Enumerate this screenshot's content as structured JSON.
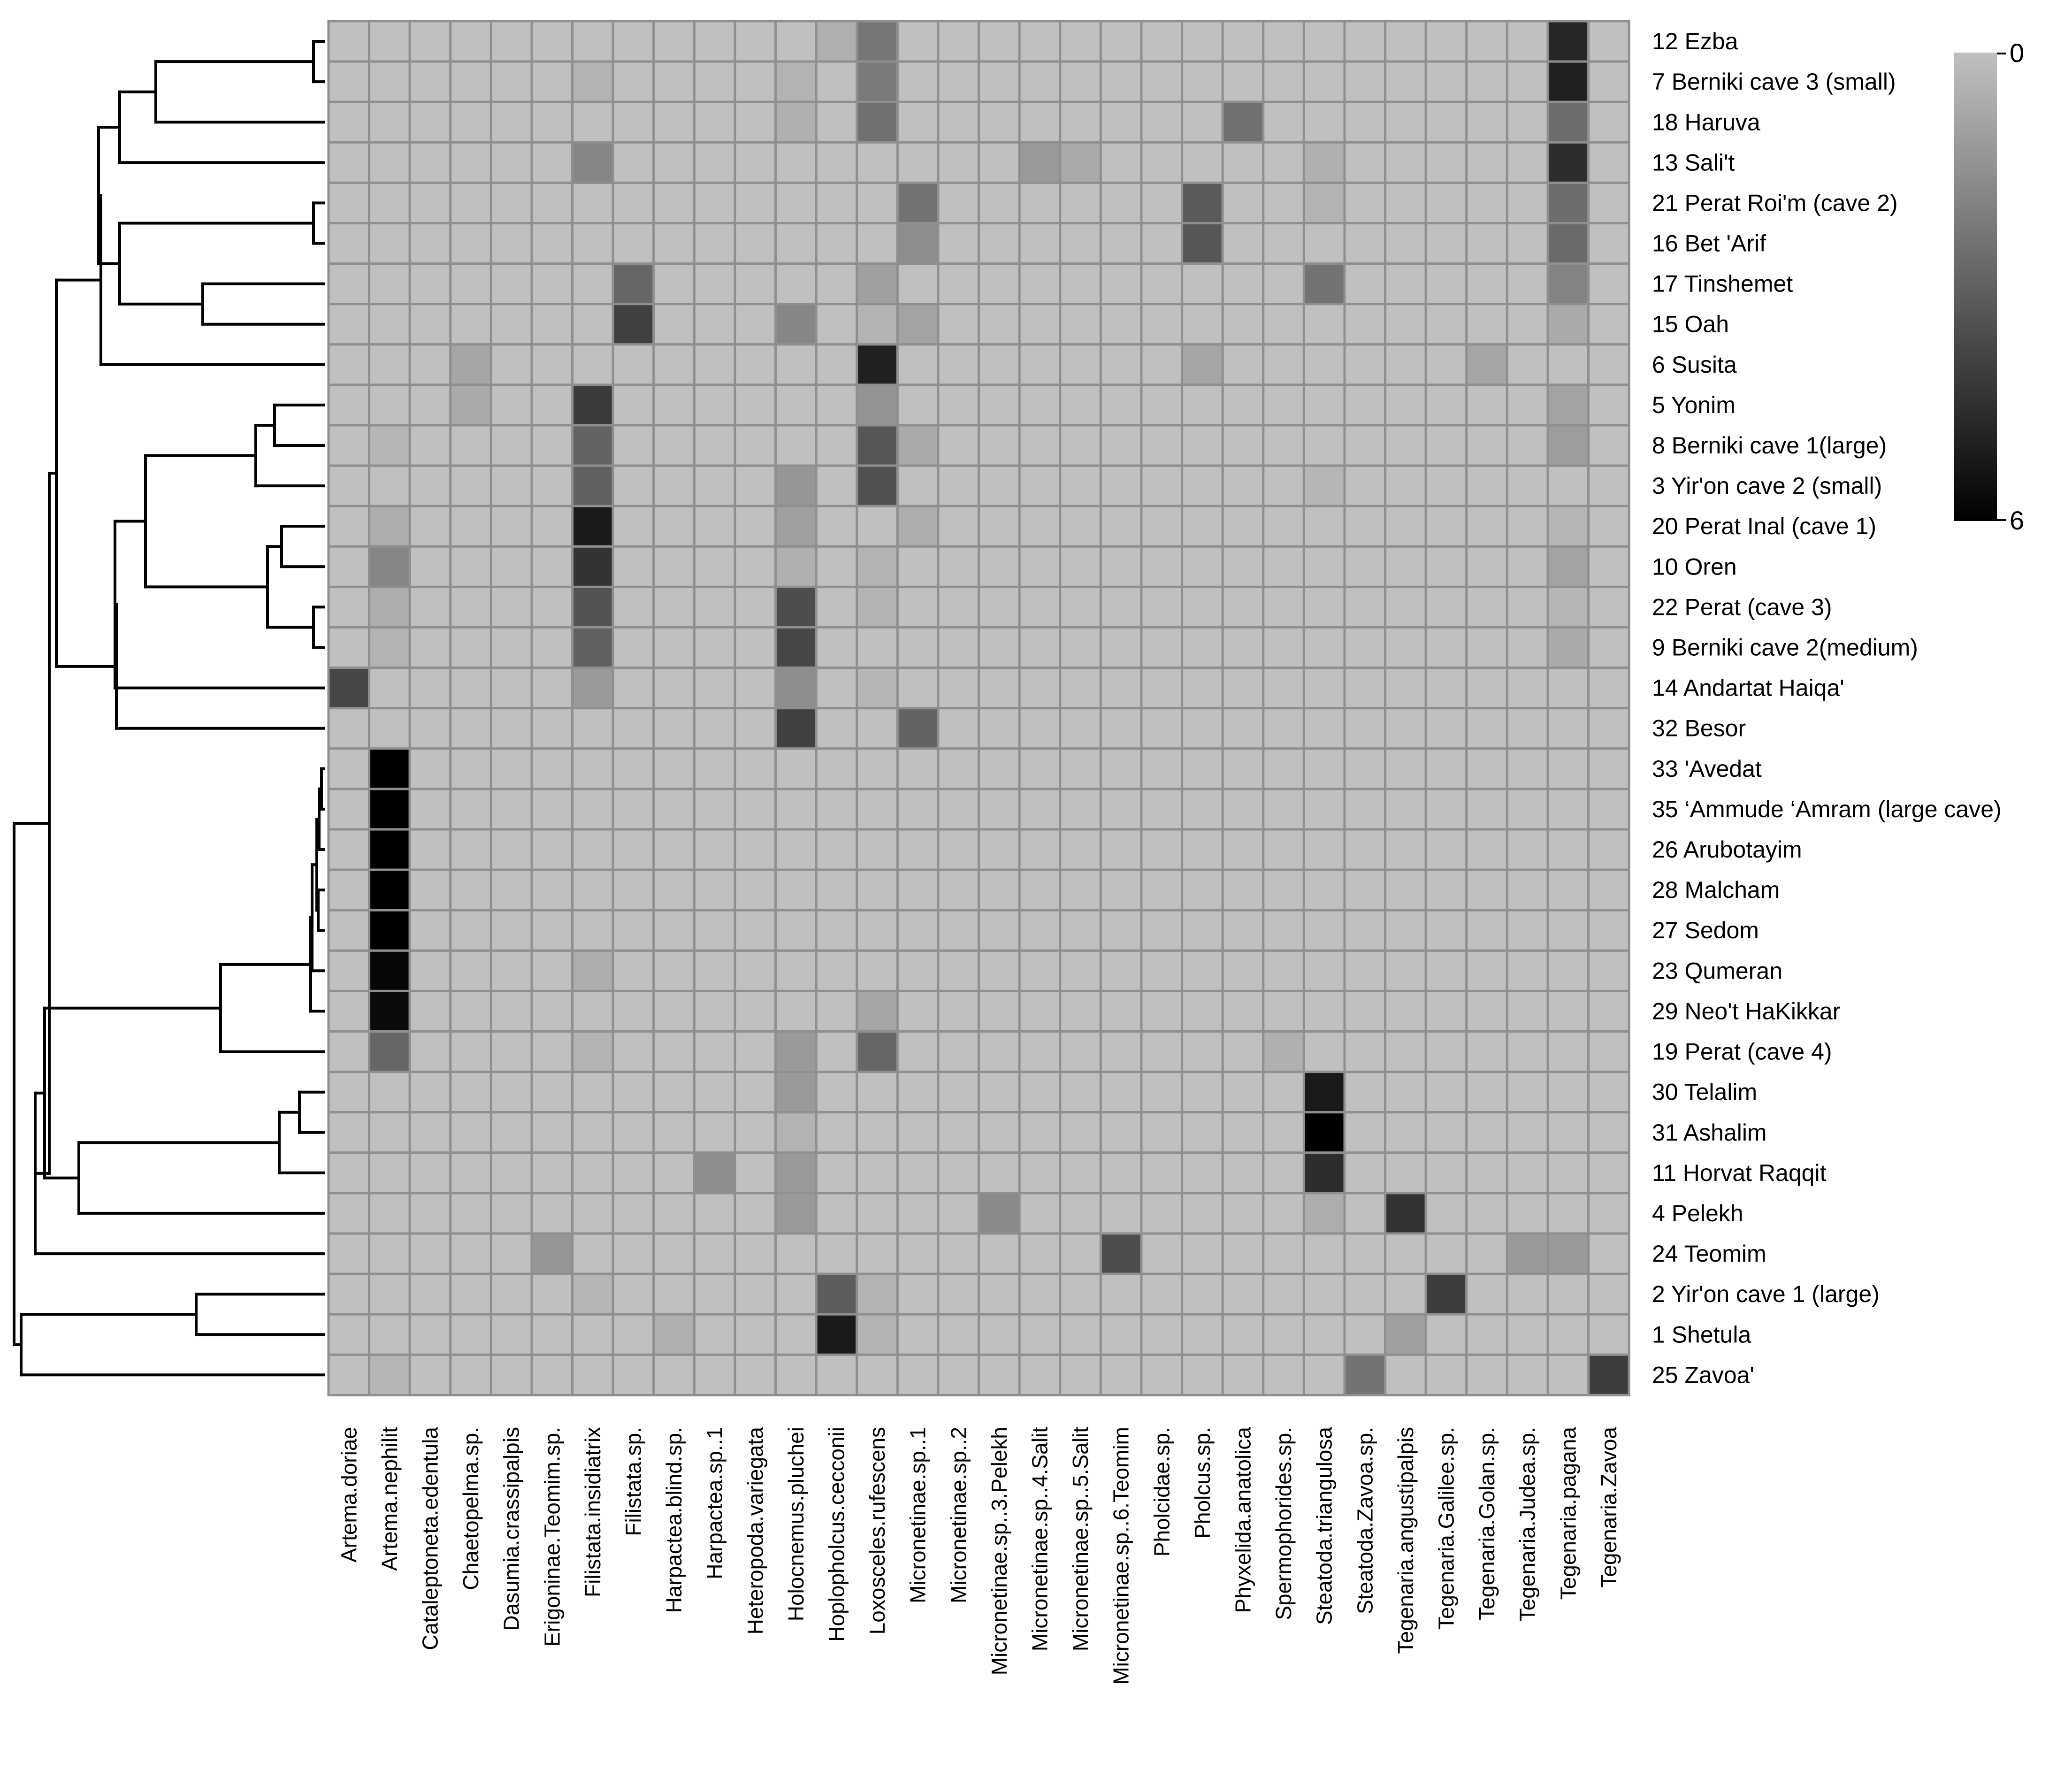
{
  "chart_data": {
    "type": "heatmap",
    "title": "",
    "rows": [
      "12 Ezba",
      "7 Berniki cave 3 (small)",
      "18 Haruva",
      "13 Sali't",
      "21 Perat Roi'm (cave 2)",
      "16 Bet 'Arif",
      "17 Tinshemet",
      "15 Oah",
      "6 Susita",
      "5 Yonim",
      "8 Berniki cave 1(large)",
      "3 Yir'on cave 2 (small)",
      "20 Perat Inal (cave 1)",
      "10 Oren",
      "22 Perat (cave 3)",
      "9 Berniki cave 2(medium)",
      "14 Andartat Haiqa'",
      "32 Besor",
      "33 'Avedat",
      "35 ‘Ammude ‘Amram  (large cave)",
      "26 Arubotayim",
      "28 Malcham",
      "27 Sedom",
      "23 Qumeran",
      "29 Neo't HaKikkar",
      "19 Perat (cave 4)",
      "30 Telalim",
      "31 Ashalim",
      "11 Horvat Raqqit",
      "4 Pelekh",
      "24 Teomim",
      "2 Yir'on cave 1 (large)",
      "1 Shetula",
      "25 Zavoa'"
    ],
    "columns": [
      "Artema.doriae",
      "Artema.nephilit",
      "Cataleptoneta.edentula",
      "Chaetopelma.sp.",
      "Dasumia.crassipalpis",
      "Erigoninae.Teomim.sp.",
      "Filistata.insidiatrix",
      "Filistata.sp.",
      "Harpactea.blind.sp.",
      "Harpactea.sp..1",
      "Heteropoda.variegata",
      "Holocnemus.pluchei",
      "Hoplopholcus.cecconii",
      "Loxosceles.rufescens",
      "Micronetinae.sp..1",
      "Micronetinae.sp..2",
      "Micronetinae.sp..3.Pelekh",
      "Micronetinae.sp..4.Salit",
      "Micronetinae.sp..5.Salit",
      "Micronetinae.sp..6.Teomim",
      "Pholcidae.sp.",
      "Pholcus.sp.",
      "Phyxelida.anatolica",
      "Spermophorides.sp.",
      "Steatoda.triangulosa",
      "Steatoda.Zavoa.sp.",
      "Tegenaria.angustipalpis",
      "Tegenaria.Galilee.sp.",
      "Tegenaria.Golan.sp.",
      "Tegenaria.Judea.sp.",
      "Tegenaria.pagana",
      "Tegenaria.Zavoa"
    ],
    "values": [
      [
        0,
        0,
        0,
        0,
        0,
        0,
        0,
        0,
        0,
        0,
        0,
        0,
        0.5,
        2.3,
        0,
        0,
        0,
        0,
        0,
        0,
        0,
        0,
        0,
        0,
        0,
        0,
        0,
        0,
        0,
        0,
        4.8,
        0
      ],
      [
        0,
        0,
        0,
        0,
        0,
        0,
        0.4,
        0,
        0,
        0,
        0,
        0.4,
        0,
        2.2,
        0,
        0,
        0,
        0,
        0,
        0,
        0,
        0,
        0,
        0,
        0,
        0,
        0,
        0,
        0,
        0,
        5.0,
        0
      ],
      [
        0,
        0,
        0,
        0,
        0,
        0,
        0,
        0,
        0,
        0,
        0,
        0.5,
        0,
        2.5,
        0,
        0,
        0,
        0,
        0,
        0,
        0,
        0,
        2.5,
        0,
        0,
        0,
        0,
        0,
        0,
        0,
        2.6,
        0
      ],
      [
        0,
        0,
        0,
        0,
        0,
        0,
        1.8,
        0,
        0,
        0,
        0,
        0,
        0,
        0,
        0,
        0,
        0,
        1.2,
        0.7,
        0,
        0,
        0,
        0,
        0,
        0.5,
        0,
        0,
        0,
        0,
        0,
        4.6,
        0
      ],
      [
        0,
        0,
        0,
        0,
        0,
        0,
        0,
        0,
        0,
        0,
        0,
        0,
        0,
        0,
        2.4,
        0,
        0,
        0,
        0,
        0,
        0,
        3.2,
        0,
        0,
        0.4,
        0,
        0,
        0,
        0,
        0,
        2.6,
        0
      ],
      [
        0,
        0,
        0,
        0,
        0,
        0,
        0,
        0,
        0,
        0,
        0,
        0,
        0,
        0,
        1.6,
        0,
        0,
        0,
        0,
        0,
        0,
        3.3,
        0,
        0,
        0,
        0,
        0,
        0,
        0,
        0,
        2.7,
        0
      ],
      [
        0,
        0,
        0,
        0,
        0,
        0,
        0,
        2.8,
        0,
        0,
        0,
        0,
        0,
        1.0,
        0,
        0,
        0,
        0,
        0,
        0,
        0,
        0,
        0,
        0,
        2.4,
        0,
        0,
        0,
        0,
        0,
        1.9,
        0
      ],
      [
        0,
        0,
        0,
        0,
        0,
        0,
        0,
        4.0,
        0,
        0,
        0,
        1.8,
        0,
        0.4,
        0.9,
        0,
        0,
        0,
        0,
        0,
        0,
        0,
        0,
        0,
        0,
        0,
        0,
        0,
        0,
        0,
        0.7,
        0
      ],
      [
        0,
        0,
        0,
        0.8,
        0,
        0,
        0,
        0,
        0,
        0,
        0,
        0,
        0,
        5.0,
        0,
        0,
        0,
        0,
        0,
        0,
        0,
        0.8,
        0,
        0,
        0,
        0,
        0,
        0,
        0.8,
        0,
        0,
        0
      ],
      [
        0,
        0,
        0,
        0.7,
        0,
        0,
        4.2,
        0,
        0,
        0,
        0,
        0,
        0,
        1.4,
        0,
        0,
        0,
        0,
        0,
        0,
        0,
        0,
        0,
        0,
        0,
        0,
        0,
        0,
        0,
        0,
        0.9,
        0
      ],
      [
        0,
        0.3,
        0,
        0,
        0,
        0,
        2.9,
        0,
        0,
        0,
        0,
        0,
        0,
        3.3,
        0.7,
        0,
        0,
        0,
        0,
        0,
        0,
        0,
        0,
        0,
        0,
        0,
        0,
        0,
        0,
        0,
        1.1,
        0
      ],
      [
        0,
        0,
        0,
        0,
        0,
        0,
        3.0,
        0,
        0,
        0,
        0,
        1.3,
        0,
        3.5,
        0,
        0,
        0,
        0,
        0,
        0,
        0,
        0,
        0,
        0,
        0.3,
        0,
        0,
        0,
        0,
        0,
        0,
        0
      ],
      [
        0,
        0.6,
        0,
        0,
        0,
        0,
        5.2,
        0,
        0,
        0,
        0,
        1.0,
        0,
        0,
        0.6,
        0,
        0,
        0,
        0,
        0,
        0,
        0,
        0,
        0,
        0,
        0,
        0,
        0,
        0,
        0,
        0.3,
        0
      ],
      [
        0,
        1.8,
        0,
        0,
        0,
        0,
        4.4,
        0,
        0,
        0,
        0,
        0.5,
        0,
        0.4,
        0,
        0,
        0,
        0,
        0,
        0,
        0,
        0,
        0,
        0,
        0,
        0,
        0,
        0,
        0,
        0,
        0.9,
        0
      ],
      [
        0,
        0.6,
        0,
        0,
        0,
        0,
        3.4,
        0,
        0,
        0,
        0,
        3.6,
        0,
        0.4,
        0,
        0,
        0,
        0,
        0,
        0,
        0,
        0,
        0,
        0,
        0,
        0,
        0,
        0,
        0,
        0,
        0.3,
        0
      ],
      [
        0,
        0.4,
        0,
        0,
        0,
        0,
        3.0,
        0,
        0,
        0,
        0,
        3.8,
        0,
        0,
        0,
        0,
        0,
        0,
        0,
        0,
        0,
        0,
        0,
        0,
        0,
        0,
        0,
        0,
        0,
        0,
        0.7,
        0
      ],
      [
        3.8,
        0,
        0,
        0,
        0,
        0,
        1.2,
        0,
        0,
        0,
        0,
        1.6,
        0,
        0.3,
        0,
        0,
        0,
        0,
        0,
        0,
        0,
        0,
        0,
        0,
        0,
        0,
        0,
        0,
        0,
        0,
        0,
        0
      ],
      [
        0,
        0,
        0,
        0,
        0,
        0,
        0,
        0,
        0,
        0,
        0,
        4.0,
        0,
        0,
        2.9,
        0,
        0,
        0,
        0,
        0,
        0,
        0,
        0,
        0,
        0,
        0,
        0,
        0,
        0,
        0,
        0,
        0
      ],
      [
        0,
        6.0,
        0,
        0,
        0,
        0,
        0,
        0,
        0,
        0,
        0,
        0,
        0,
        0,
        0,
        0,
        0,
        0,
        0,
        0,
        0,
        0,
        0,
        0,
        0,
        0,
        0,
        0,
        0,
        0,
        0,
        0
      ],
      [
        0,
        6.0,
        0,
        0,
        0,
        0,
        0,
        0,
        0,
        0,
        0,
        0,
        0,
        0,
        0,
        0,
        0,
        0,
        0,
        0,
        0,
        0,
        0,
        0,
        0,
        0,
        0,
        0,
        0,
        0,
        0,
        0
      ],
      [
        0,
        6.0,
        0,
        0,
        0,
        0,
        0,
        0,
        0,
        0,
        0,
        0,
        0,
        0,
        0,
        0,
        0,
        0,
        0,
        0,
        0,
        0,
        0,
        0,
        0,
        0,
        0,
        0,
        0,
        0,
        0,
        0
      ],
      [
        0,
        6.0,
        0,
        0,
        0,
        0,
        0,
        0,
        0,
        0,
        0,
        0,
        0,
        0,
        0,
        0,
        0,
        0,
        0,
        0,
        0,
        0,
        0,
        0,
        0,
        0,
        0,
        0,
        0,
        0,
        0,
        0
      ],
      [
        0,
        6.0,
        0,
        0,
        0,
        0,
        0,
        0,
        0,
        0,
        0,
        0,
        0,
        0,
        0,
        0,
        0,
        0,
        0,
        0,
        0,
        0,
        0,
        0,
        0,
        0,
        0,
        0,
        0,
        0,
        0,
        0
      ],
      [
        0,
        5.8,
        0,
        0,
        0,
        0,
        0.6,
        0,
        0,
        0,
        0,
        0,
        0,
        0,
        0,
        0,
        0,
        0,
        0,
        0,
        0,
        0,
        0,
        0,
        0,
        0,
        0,
        0,
        0,
        0,
        0,
        0
      ],
      [
        0,
        5.7,
        0,
        0,
        0,
        0,
        0,
        0,
        0,
        0,
        0,
        0,
        0,
        0.8,
        0,
        0,
        0,
        0,
        0,
        0,
        0,
        0,
        0,
        0,
        0,
        0,
        0,
        0,
        0,
        0,
        0,
        0
      ],
      [
        0,
        2.8,
        0,
        0,
        0,
        0,
        0.4,
        0,
        0,
        0,
        0,
        1.2,
        0,
        2.8,
        0,
        0,
        0,
        0,
        0,
        0,
        0,
        0,
        0,
        0.5,
        0,
        0,
        0,
        0,
        0,
        0,
        0,
        0
      ],
      [
        0,
        0,
        0,
        0,
        0,
        0,
        0,
        0,
        0,
        0,
        0,
        1.2,
        0,
        0,
        0,
        0,
        0,
        0,
        0,
        0,
        0,
        0,
        0,
        0,
        5.2,
        0,
        0,
        0,
        0,
        0,
        0,
        0
      ],
      [
        0,
        0,
        0,
        0,
        0,
        0,
        0,
        0,
        0,
        0,
        0,
        0.4,
        0,
        0,
        0,
        0,
        0,
        0,
        0,
        0,
        0,
        0,
        0,
        0,
        6.0,
        0,
        0,
        0,
        0,
        0,
        0,
        0
      ],
      [
        0,
        0,
        0,
        0,
        0,
        0,
        0,
        0,
        0,
        1.6,
        0,
        1.2,
        0,
        0,
        0,
        0,
        0,
        0,
        0,
        0,
        0,
        0,
        0,
        0,
        4.6,
        0,
        0,
        0,
        0,
        0,
        0,
        0
      ],
      [
        0,
        0,
        0,
        0,
        0,
        0,
        0,
        0,
        0,
        0,
        0,
        1.2,
        0,
        0,
        0,
        0,
        1.7,
        0,
        0,
        0,
        0,
        0,
        0,
        0,
        0.6,
        0,
        4.4,
        0,
        0,
        0,
        0,
        0
      ],
      [
        0,
        0,
        0,
        0,
        0,
        1.3,
        0,
        0,
        0,
        0,
        0,
        0,
        0,
        0,
        0,
        0,
        0,
        0,
        0,
        3.6,
        0,
        0,
        0,
        0,
        0,
        0,
        0,
        0,
        0,
        1.2,
        1.2,
        0
      ],
      [
        0,
        0,
        0,
        0,
        0,
        0,
        0.3,
        0,
        0,
        0,
        0,
        0,
        3.1,
        0.4,
        0,
        0,
        0,
        0,
        0,
        0,
        0,
        0,
        0,
        0,
        0,
        0,
        0,
        4.1,
        0,
        0,
        0,
        0
      ],
      [
        0,
        0,
        0,
        0,
        0,
        0,
        0,
        0,
        0.5,
        0,
        0,
        0,
        5.2,
        0.4,
        0,
        0,
        0,
        0,
        0,
        0,
        0,
        0,
        0,
        0,
        0,
        0,
        1.0,
        0,
        0,
        0,
        0,
        0
      ],
      [
        0,
        0.3,
        0,
        0,
        0,
        0,
        0,
        0,
        0,
        0,
        0,
        0,
        0,
        0,
        0,
        0,
        0,
        0,
        0,
        0,
        0,
        0,
        0,
        0,
        0,
        2.4,
        0,
        0,
        0,
        0,
        0,
        4.1
      ]
    ],
    "color_scale": {
      "min": 0,
      "max": 6,
      "low_color": "#c0c0c0",
      "high_color": "#000000"
    },
    "legend": {
      "min_label": "0",
      "max_label": "6",
      "placement": "top-right"
    },
    "dendrogram": "row clustering tree shown at left",
    "xlabel": "",
    "ylabel": ""
  }
}
